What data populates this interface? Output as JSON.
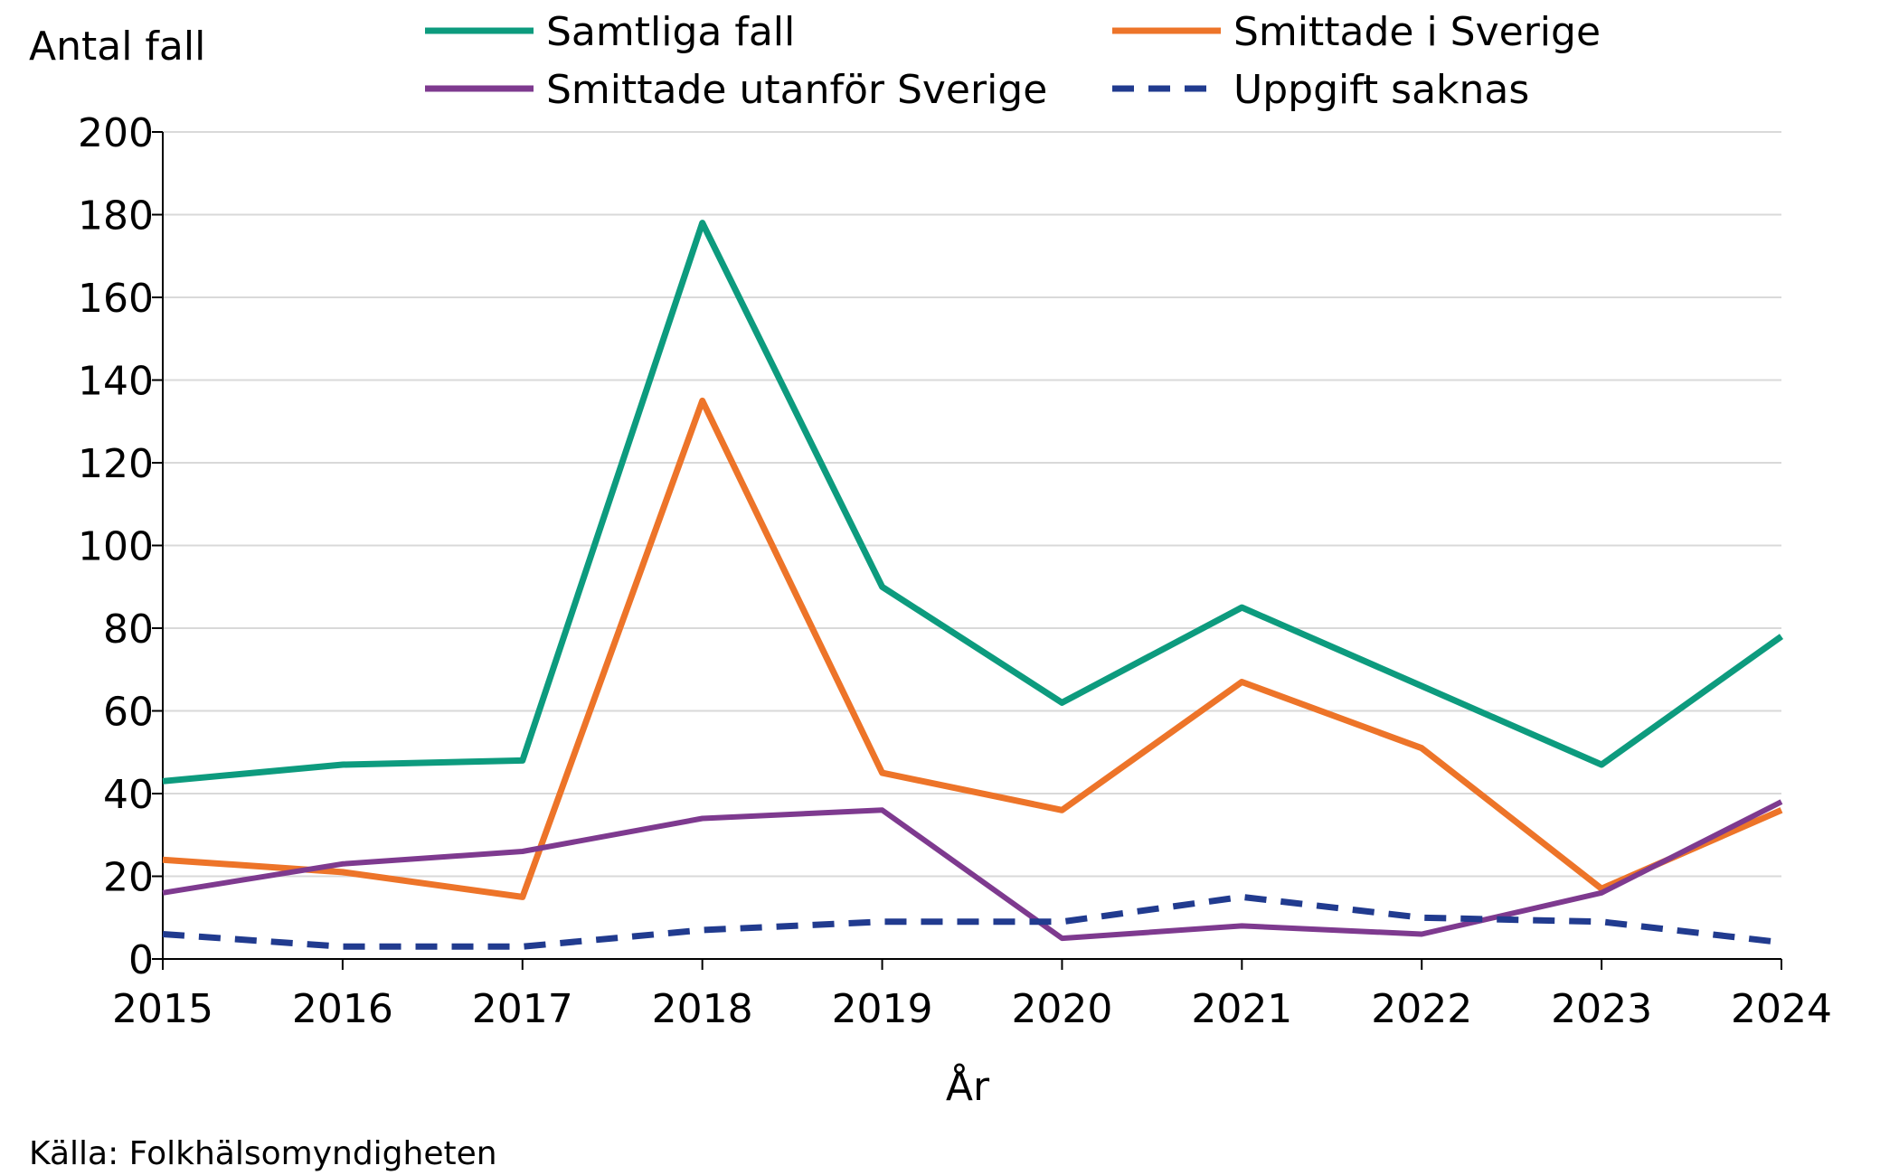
{
  "chart_data": {
    "type": "line",
    "ylabel": "Antal fall",
    "xlabel": "År",
    "ylim": [
      0,
      200
    ],
    "yticks": [
      0,
      20,
      40,
      60,
      80,
      100,
      120,
      140,
      160,
      180,
      200
    ],
    "categories": [
      "2015",
      "2016",
      "2017",
      "2018",
      "2019",
      "2020",
      "2021",
      "2022",
      "2023",
      "2024"
    ],
    "grid": true,
    "legend_position": "top",
    "series": [
      {
        "name": "Samtliga fall",
        "color": "#0d9b7e",
        "dashed": false,
        "values": [
          43,
          47,
          48,
          178,
          90,
          62,
          85,
          66,
          47,
          78
        ]
      },
      {
        "name": "Smittade i Sverige",
        "color": "#ed7429",
        "dashed": false,
        "values": [
          24,
          21,
          15,
          135,
          45,
          36,
          67,
          51,
          17,
          36
        ]
      },
      {
        "name": "Smittade utanför Sverige",
        "color": "#7e3a8f",
        "dashed": false,
        "values": [
          16,
          23,
          26,
          34,
          36,
          5,
          8,
          6,
          16,
          38
        ]
      },
      {
        "name": "Uppgift saknas",
        "color": "#213b8f",
        "dashed": true,
        "values": [
          6,
          3,
          3,
          7,
          9,
          9,
          15,
          10,
          9,
          4
        ]
      }
    ]
  },
  "source": "Källa: Folkhälsomyndigheten"
}
